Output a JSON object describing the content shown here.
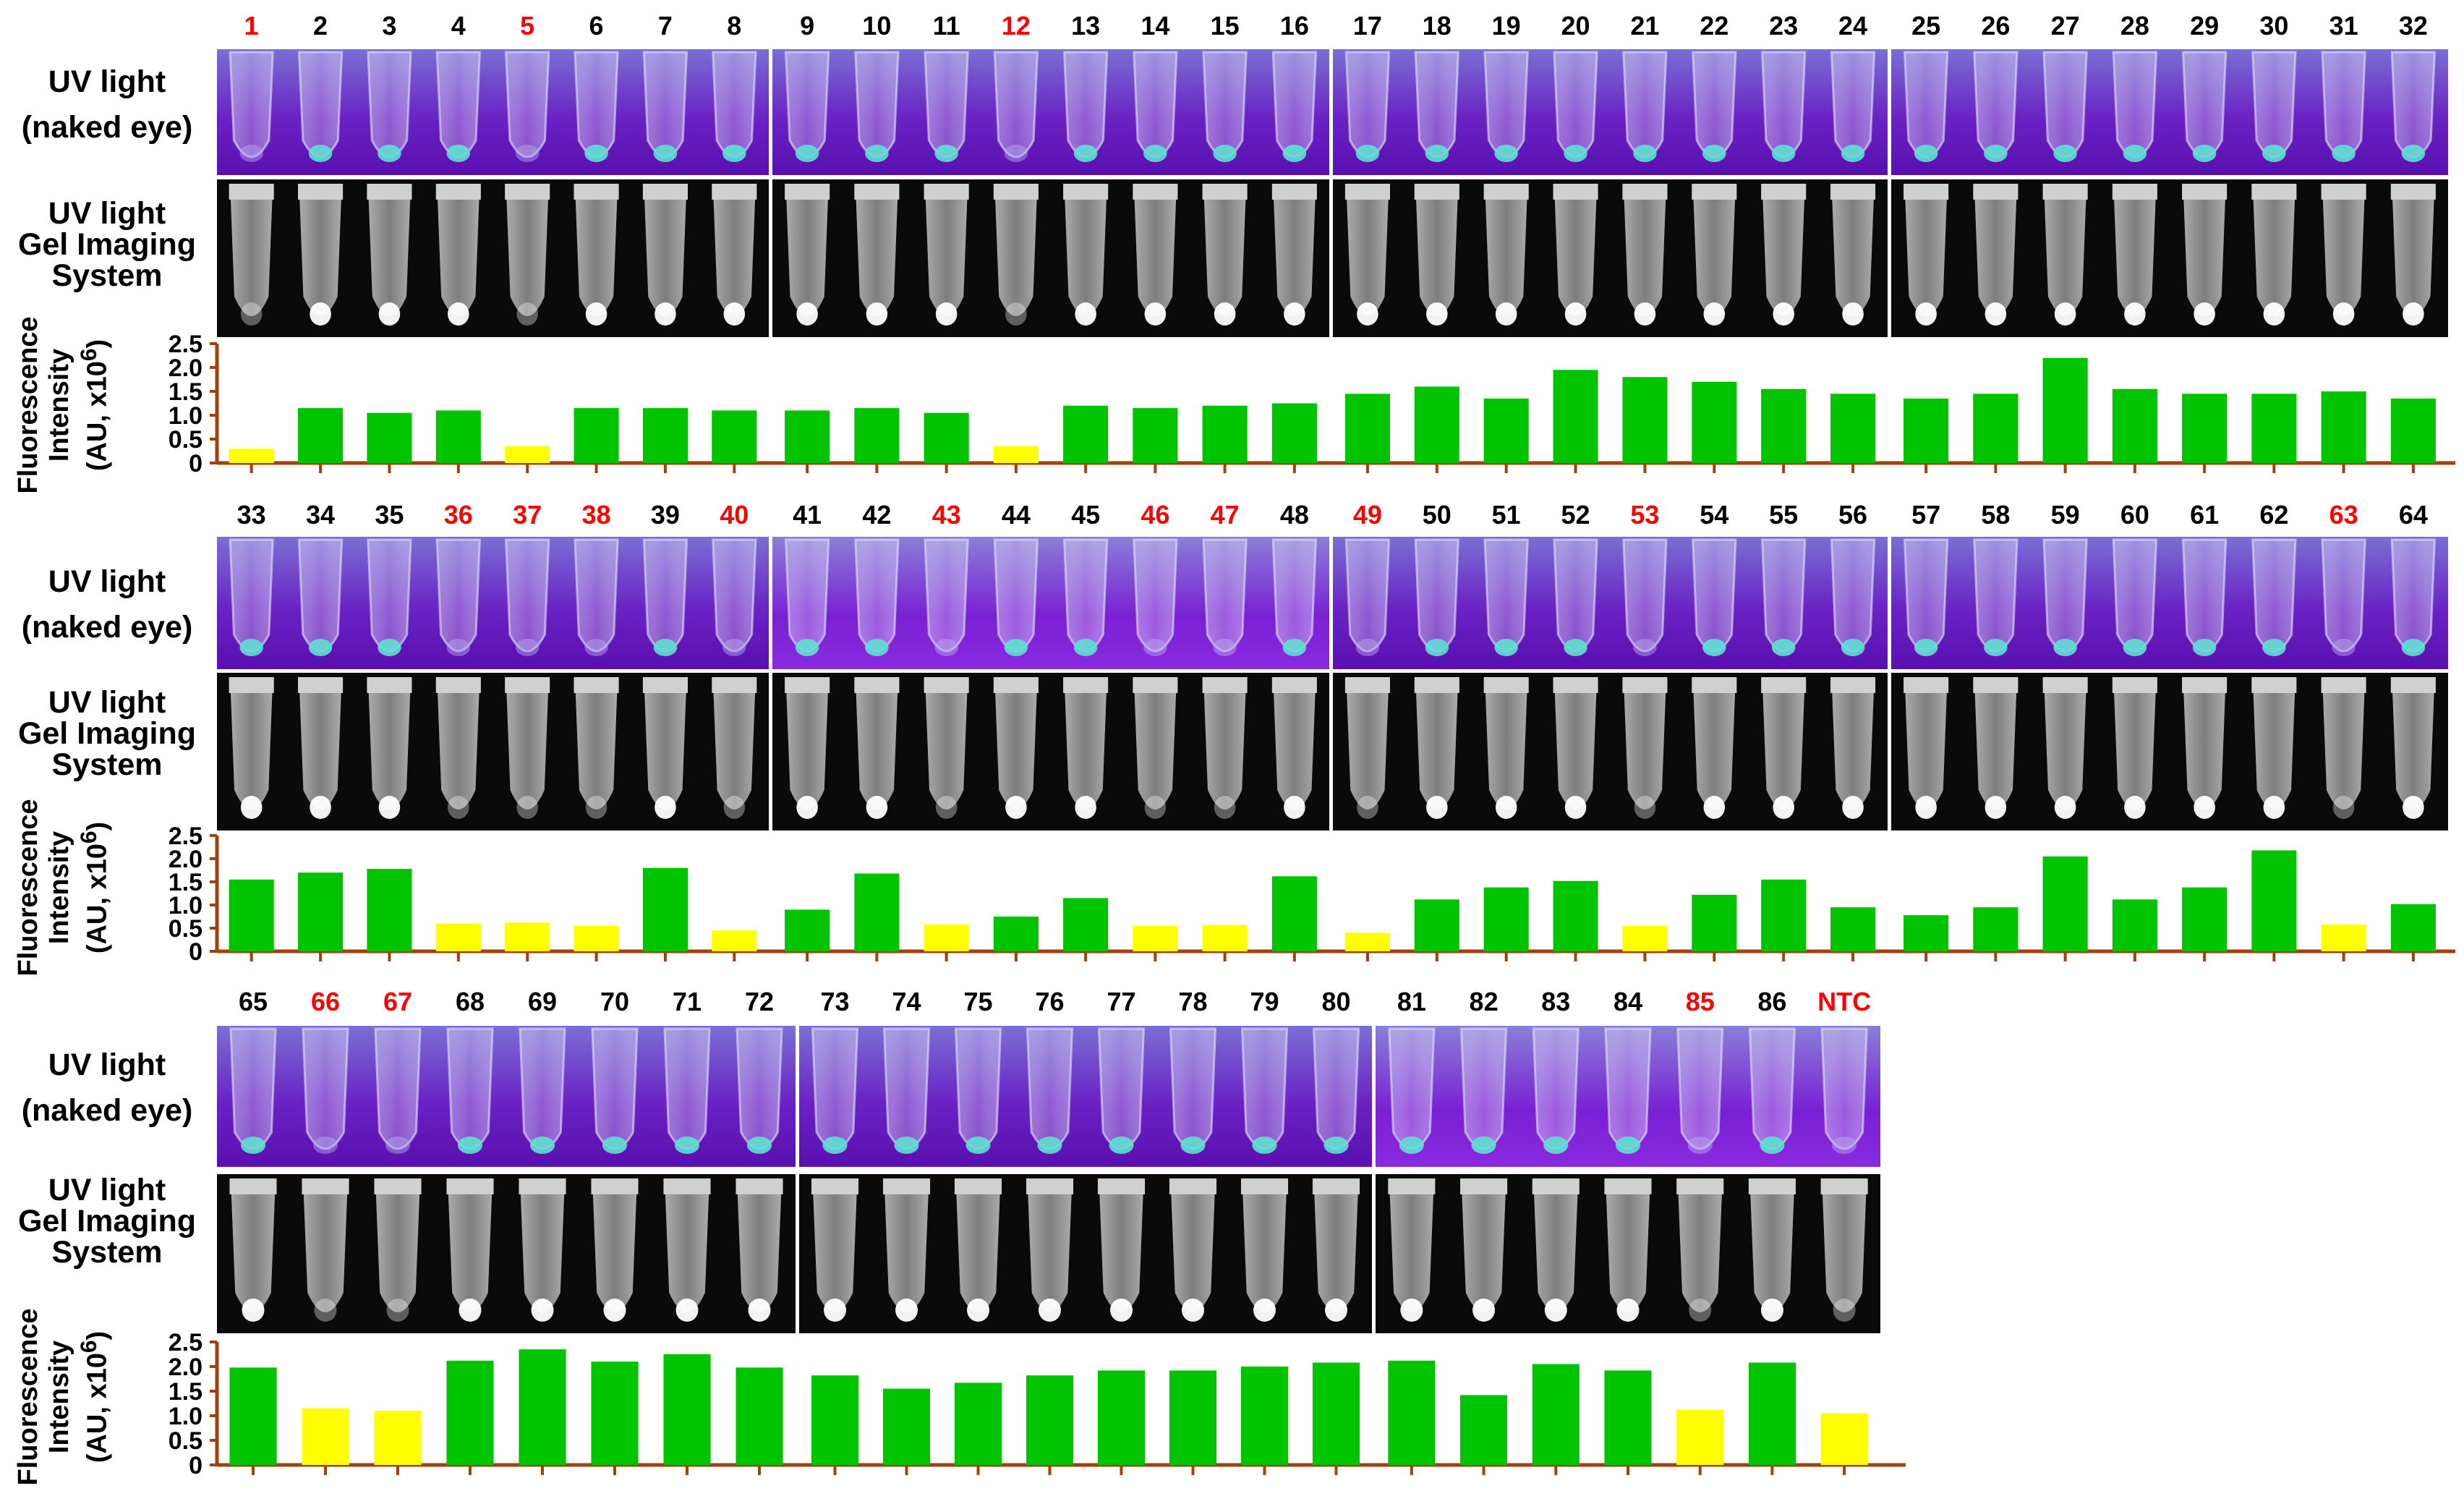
{
  "colors": {
    "positive": "#00c400",
    "negative": "#ffff00",
    "axis": "#a0410f",
    "highlight_label": "#ff0000",
    "normal_label": "#000000"
  },
  "row_labels": {
    "uv_naked": [
      "UV light",
      "(naked eye)"
    ],
    "uv_gel": [
      "UV light",
      "Gel Imaging",
      "System"
    ],
    "fluor": [
      "Fluorescence",
      "Intensity"
    ],
    "fluor_unit": "(AU, x10"
  },
  "chart_data": [
    {
      "type": "bar",
      "ylabel": "Fluorescence Intensity (AU, x10⁶)",
      "yticks": [
        "2.5",
        "2.0",
        "1.5",
        "1.0",
        "0.5",
        "0"
      ],
      "ylim": [
        0,
        2.5
      ],
      "categories": [
        "1",
        "2",
        "3",
        "4",
        "5",
        "6",
        "7",
        "8",
        "9",
        "10",
        "11",
        "12",
        "13",
        "14",
        "15",
        "16",
        "17",
        "18",
        "19",
        "20",
        "21",
        "22",
        "23",
        "24",
        "25",
        "26",
        "27",
        "28",
        "29",
        "30",
        "31",
        "32"
      ],
      "values": [
        0.3,
        1.15,
        1.05,
        1.1,
        0.35,
        1.15,
        1.15,
        1.1,
        1.1,
        1.15,
        1.05,
        0.35,
        1.2,
        1.15,
        1.2,
        1.25,
        1.45,
        1.6,
        1.35,
        1.95,
        1.8,
        1.7,
        1.55,
        1.45,
        1.35,
        1.45,
        2.2,
        1.55,
        1.45,
        1.45,
        1.5,
        1.35
      ],
      "negative": [
        "1",
        "5",
        "12"
      ]
    },
    {
      "type": "bar",
      "ylabel": "Fluorescence Intensity (AU, x10⁶)",
      "yticks": [
        "2.5",
        "2.0",
        "1.5",
        "1.0",
        "0.5",
        "0"
      ],
      "ylim": [
        0,
        2.5
      ],
      "categories": [
        "33",
        "34",
        "35",
        "36",
        "37",
        "38",
        "39",
        "40",
        "41",
        "42",
        "43",
        "44",
        "45",
        "46",
        "47",
        "48",
        "49",
        "50",
        "51",
        "52",
        "53",
        "54",
        "55",
        "56",
        "57",
        "58",
        "59",
        "60",
        "61",
        "62",
        "63",
        "64"
      ],
      "values": [
        1.55,
        1.7,
        1.78,
        0.6,
        0.62,
        0.55,
        1.8,
        0.45,
        0.9,
        1.68,
        0.58,
        0.75,
        1.15,
        0.55,
        0.57,
        1.62,
        0.4,
        1.12,
        1.38,
        1.52,
        0.55,
        1.22,
        1.55,
        0.95,
        0.78,
        0.95,
        2.05,
        1.12,
        1.38,
        2.18,
        0.58,
        1.02
      ],
      "negative": [
        "36",
        "37",
        "38",
        "40",
        "43",
        "46",
        "47",
        "49",
        "53",
        "63"
      ]
    },
    {
      "type": "bar",
      "ylabel": "Fluorescence Intensity (AU, x10⁶)",
      "yticks": [
        "2.5",
        "2.0",
        "1.5",
        "1.0",
        "0.5",
        "0"
      ],
      "ylim": [
        0,
        2.5
      ],
      "categories": [
        "65",
        "66",
        "67",
        "68",
        "69",
        "70",
        "71",
        "72",
        "73",
        "74",
        "75",
        "76",
        "77",
        "78",
        "79",
        "80",
        "81",
        "82",
        "83",
        "84",
        "85",
        "86",
        "NTC"
      ],
      "values": [
        1.98,
        1.15,
        1.1,
        2.12,
        2.35,
        2.1,
        2.25,
        1.98,
        1.82,
        1.55,
        1.67,
        1.82,
        1.92,
        1.92,
        2.0,
        2.08,
        2.12,
        1.42,
        2.05,
        1.92,
        1.12,
        2.08,
        1.05
      ],
      "negative": [
        "66",
        "67",
        "85",
        "NTC"
      ]
    }
  ]
}
